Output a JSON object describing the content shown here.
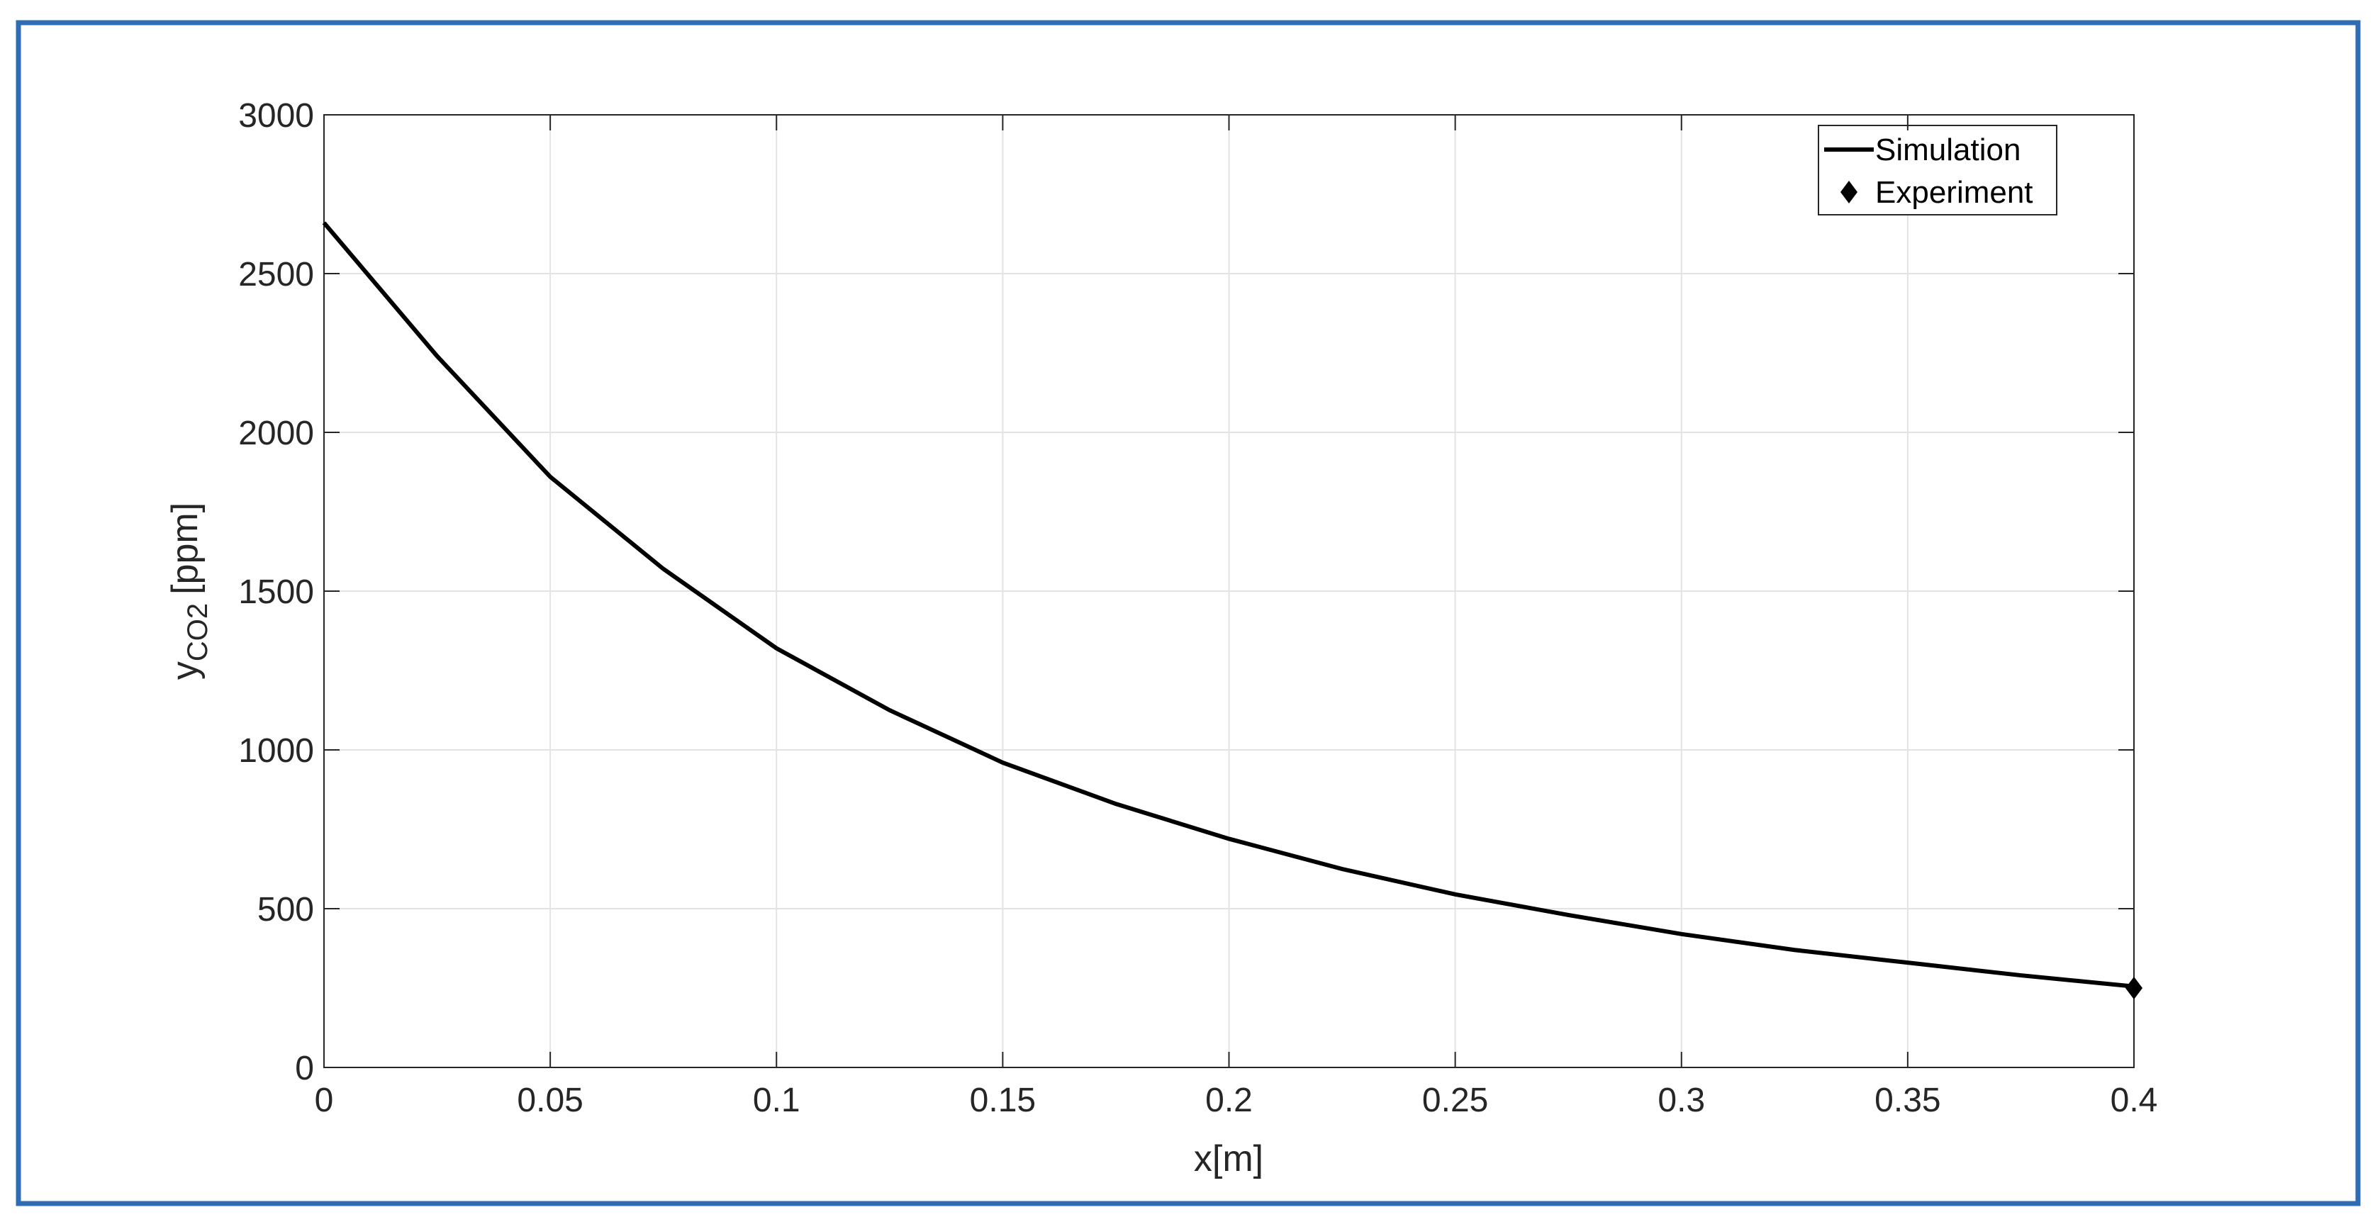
{
  "chart_data": {
    "type": "line",
    "xlabel": "x[m]",
    "ylabel": "y",
    "ylabel_sub": "CO2",
    "ylabel_unit": "[ppm]",
    "xlim": [
      0,
      0.4
    ],
    "xticks": [
      0,
      0.05,
      0.1,
      0.15,
      0.2,
      0.25,
      0.3,
      0.35,
      0.4
    ],
    "ylim": [
      0,
      3000
    ],
    "yticks": [
      0,
      500,
      1000,
      1500,
      2000,
      2500,
      3000
    ],
    "grid": true,
    "legend": "upper right",
    "series": [
      {
        "name": "Simulation",
        "color": "#000000",
        "style": "line",
        "x": [
          0,
          0.025,
          0.05,
          0.075,
          0.1,
          0.125,
          0.15,
          0.175,
          0.2,
          0.225,
          0.25,
          0.275,
          0.3,
          0.325,
          0.35,
          0.375,
          0.4
        ],
        "values": [
          2660,
          2240,
          1860,
          1570,
          1320,
          1125,
          960,
          830,
          720,
          625,
          545,
          480,
          420,
          370,
          330,
          290,
          255
        ]
      },
      {
        "name": "Experiment",
        "color": "#000000",
        "style": "diamond",
        "x": [
          0.4
        ],
        "values": [
          250
        ]
      }
    ]
  }
}
